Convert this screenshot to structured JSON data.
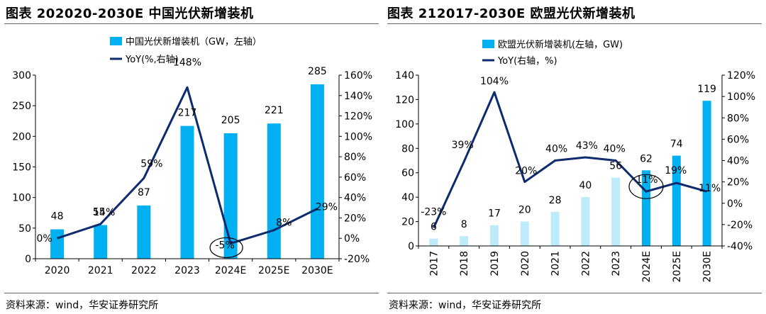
{
  "colors": {
    "bar_bright": "#00B0F0",
    "bar_light": "#BDEBFA",
    "line": "#0D2B6E",
    "axis": "#000000"
  },
  "panels": [
    {
      "title": "图表 202020-2030E 中国光伏新增装机",
      "source": "资料来源：wind，华安证券研究所"
    },
    {
      "title": "图表 212017-2030E 欧盟光伏新增装机",
      "source": "资料来源：wind，华安证券研究所"
    }
  ],
  "chart_data": [
    {
      "type": "bar+line",
      "categories": [
        "2020",
        "2021",
        "2022",
        "2023",
        "2024E",
        "2025E",
        "2030E"
      ],
      "series": [
        {
          "name": "中国光伏新增装机（GW，左轴）",
          "type": "bar",
          "axis": "left",
          "values": [
            48,
            55,
            87,
            217,
            205,
            221,
            285
          ],
          "labels": [
            "48",
            "55",
            "87",
            "217",
            "205",
            "221",
            "285"
          ]
        },
        {
          "name": "YoY(%,右轴)",
          "type": "line",
          "axis": "right",
          "values": [
            0,
            14,
            59,
            148,
            -5,
            8,
            29
          ],
          "labels": [
            "0%",
            "14%",
            "59%",
            "148%",
            "-5%",
            "8%",
            "29%"
          ]
        }
      ],
      "y_left": {
        "min": 0,
        "max": 300,
        "ticks": [
          "0",
          "50",
          "100",
          "150",
          "200",
          "250",
          "300"
        ]
      },
      "y_right": {
        "min": -20,
        "max": 160,
        "ticks": [
          "-20%",
          "0%",
          "20%",
          "40%",
          "60%",
          "80%",
          "100%",
          "120%",
          "140%",
          "160%"
        ]
      },
      "grid": false,
      "legend": "top-center",
      "annotation": "ellipse around 2024E YoY label"
    },
    {
      "type": "bar+line",
      "categories": [
        "2017",
        "2018",
        "2019",
        "2020",
        "2021",
        "2022",
        "2023",
        "2024E",
        "2025E",
        "2030E"
      ],
      "bar_highlight": [
        false,
        false,
        false,
        false,
        false,
        false,
        false,
        true,
        true,
        true
      ],
      "series": [
        {
          "name": "欧盟光伏新增装机(左轴，GW)",
          "type": "bar",
          "axis": "left",
          "values": [
            6,
            8,
            17,
            20,
            28,
            40,
            56,
            62,
            74,
            119
          ],
          "labels": [
            "6",
            "8",
            "17",
            "20",
            "28",
            "40",
            "56",
            "62",
            "74",
            "119"
          ]
        },
        {
          "name": "YoY(右轴，%)",
          "type": "line",
          "axis": "right",
          "values": [
            -23,
            39,
            104,
            20,
            40,
            43,
            40,
            11,
            19,
            11
          ],
          "labels": [
            "-23%",
            "39%",
            "104%",
            "20%",
            "40%",
            "43%",
            "40%",
            "11%",
            "19%",
            "11%"
          ]
        }
      ],
      "y_left": {
        "min": 0,
        "max": 140,
        "ticks": [
          "0",
          "20",
          "40",
          "60",
          "80",
          "100",
          "120",
          "140"
        ]
      },
      "y_right": {
        "min": -40,
        "max": 120,
        "ticks": [
          "-40%",
          "-20%",
          "0%",
          "20%",
          "40%",
          "60%",
          "80%",
          "100%",
          "120%"
        ]
      },
      "grid": false,
      "legend": "top-center",
      "annotation": "ellipse around 2024E YoY label"
    }
  ]
}
